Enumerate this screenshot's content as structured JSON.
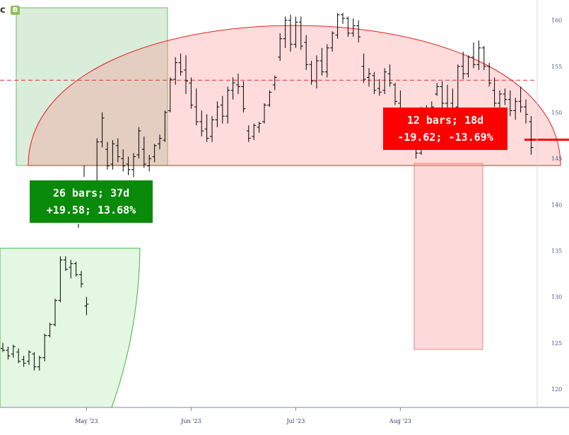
{
  "toolbar": {
    "badge_letter": "B",
    "glyph": "c"
  },
  "callouts": {
    "up": {
      "line1": "26 bars; 37d",
      "line2": "+19.58; 13.68%",
      "color": "#0a8a0a"
    },
    "down": {
      "line1": "12 bars; 18d",
      "line2": "-19.62; -13.69%",
      "color": "#ff0000"
    }
  },
  "chart_data": {
    "type": "ohlc",
    "y_ticks": [
      120,
      125,
      130,
      135,
      140,
      145,
      150,
      155,
      160
    ],
    "ylim": [
      118.0,
      162.2
    ],
    "x_ticks": [
      {
        "label": "May '23",
        "idx": 16
      },
      {
        "label": "Jun '23",
        "idx": 36
      },
      {
        "label": "Jul '23",
        "idx": 56
      },
      {
        "label": "Aug '23",
        "idx": 76
      }
    ],
    "bars": [
      [
        124.4,
        125.0,
        124.0,
        124.2
      ],
      [
        124.2,
        124.6,
        123.2,
        123.6
      ],
      [
        123.8,
        124.8,
        123.4,
        124.6
      ],
      [
        124.0,
        124.4,
        122.8,
        123.0
      ],
      [
        123.2,
        123.6,
        122.4,
        122.8
      ],
      [
        123.0,
        124.2,
        122.6,
        124.0
      ],
      [
        123.8,
        124.0,
        122.0,
        122.4
      ],
      [
        122.4,
        123.6,
        122.0,
        123.4
      ],
      [
        123.4,
        126.0,
        123.0,
        125.8
      ],
      [
        125.8,
        127.2,
        125.6,
        127.0
      ],
      [
        127.0,
        129.8,
        126.8,
        129.6
      ],
      [
        129.6,
        134.4,
        129.4,
        134.0
      ],
      [
        134.0,
        134.4,
        132.8,
        133.0
      ],
      [
        133.2,
        134.0,
        132.0,
        133.6
      ],
      [
        133.6,
        133.8,
        132.2,
        132.4
      ],
      [
        132.4,
        132.8,
        131.0,
        131.4
      ],
      [
        129.0,
        130.0,
        128.0,
        129.2
      ],
      [
        141.0,
        142.0,
        139.2,
        140.4
      ],
      [
        142.2,
        147.2,
        141.8,
        146.8
      ],
      [
        146.8,
        150.0,
        146.2,
        149.4
      ],
      [
        146.0,
        146.8,
        143.8,
        144.2
      ],
      [
        144.4,
        147.0,
        143.8,
        146.6
      ],
      [
        146.4,
        147.2,
        144.6,
        145.2
      ],
      [
        145.0,
        146.0,
        143.6,
        144.2
      ],
      [
        144.4,
        145.2,
        143.2,
        143.8
      ],
      [
        143.8,
        145.6,
        143.0,
        145.2
      ],
      [
        145.4,
        148.4,
        145.0,
        148.0
      ],
      [
        146.0,
        147.4,
        144.0,
        144.4
      ],
      [
        144.2,
        145.4,
        143.6,
        145.0
      ],
      [
        145.2,
        146.6,
        144.6,
        146.4
      ],
      [
        146.6,
        147.6,
        146.0,
        147.2
      ],
      [
        147.0,
        150.2,
        146.8,
        150.0
      ],
      [
        150.2,
        153.8,
        150.0,
        153.6
      ],
      [
        153.6,
        156.0,
        153.0,
        155.4
      ],
      [
        155.4,
        156.4,
        154.0,
        154.4
      ],
      [
        154.6,
        156.2,
        152.0,
        153.4
      ],
      [
        153.2,
        153.8,
        150.4,
        150.8
      ],
      [
        150.6,
        152.6,
        148.6,
        149.0
      ],
      [
        149.0,
        150.2,
        147.4,
        148.0
      ],
      [
        148.2,
        149.8,
        146.8,
        147.2
      ],
      [
        147.4,
        149.6,
        146.8,
        149.2
      ],
      [
        149.2,
        151.2,
        148.4,
        150.6
      ],
      [
        150.8,
        151.8,
        148.8,
        149.6
      ],
      [
        149.6,
        152.8,
        148.8,
        152.4
      ],
      [
        152.4,
        153.8,
        151.4,
        153.2
      ],
      [
        153.0,
        154.2,
        152.0,
        152.8
      ],
      [
        152.8,
        153.4,
        150.0,
        150.4
      ],
      [
        148.0,
        148.6,
        146.8,
        147.2
      ],
      [
        147.4,
        148.8,
        147.0,
        148.6
      ],
      [
        148.4,
        149.0,
        147.8,
        148.8
      ],
      [
        149.0,
        151.0,
        148.8,
        150.8
      ],
      [
        150.8,
        152.4,
        150.6,
        152.2
      ],
      [
        153.0,
        154.0,
        152.4,
        153.8
      ],
      [
        156.0,
        158.6,
        155.6,
        158.0
      ],
      [
        158.0,
        160.4,
        157.0,
        160.0
      ],
      [
        160.0,
        160.6,
        156.6,
        157.4
      ],
      [
        157.4,
        160.4,
        157.0,
        159.8
      ],
      [
        159.8,
        160.4,
        156.8,
        157.2
      ],
      [
        157.6,
        158.4,
        154.6,
        155.2
      ],
      [
        155.2,
        155.6,
        153.0,
        153.4
      ],
      [
        153.4,
        156.2,
        152.6,
        155.6
      ],
      [
        155.6,
        157.0,
        154.0,
        154.4
      ],
      [
        154.4,
        157.4,
        153.8,
        157.0
      ],
      [
        157.0,
        158.8,
        156.6,
        158.6
      ],
      [
        158.4,
        160.8,
        158.0,
        160.6
      ],
      [
        160.6,
        160.8,
        159.6,
        160.2
      ],
      [
        160.2,
        160.4,
        158.2,
        158.6
      ],
      [
        158.6,
        160.2,
        158.2,
        159.4
      ],
      [
        159.4,
        160.0,
        157.6,
        158.2
      ],
      [
        155.0,
        156.4,
        153.2,
        153.6
      ],
      [
        153.8,
        154.8,
        152.8,
        154.2
      ],
      [
        154.0,
        154.4,
        152.0,
        152.4
      ],
      [
        152.6,
        153.6,
        151.8,
        152.2
      ],
      [
        152.4,
        154.8,
        152.0,
        154.4
      ],
      [
        154.2,
        155.2,
        152.8,
        153.2
      ],
      [
        153.0,
        153.2,
        150.8,
        151.2
      ],
      [
        151.0,
        152.4,
        149.4,
        149.8
      ],
      [
        150.0,
        150.4,
        148.0,
        148.6
      ],
      [
        148.4,
        149.4,
        147.2,
        147.6
      ],
      [
        147.2,
        147.6,
        145.0,
        145.6
      ],
      [
        145.6,
        150.6,
        145.4,
        150.2
      ],
      [
        150.0,
        150.8,
        148.8,
        149.8
      ],
      [
        149.8,
        151.2,
        148.6,
        150.6
      ],
      [
        152.0,
        153.2,
        151.8,
        152.8
      ],
      [
        152.8,
        153.4,
        150.4,
        151.0
      ],
      [
        151.0,
        153.0,
        149.6,
        150.0
      ],
      [
        151.0,
        152.6,
        149.8,
        150.4
      ],
      [
        150.6,
        155.2,
        150.4,
        155.0
      ],
      [
        155.0,
        156.6,
        153.6,
        154.2
      ],
      [
        154.2,
        156.2,
        153.8,
        156.0
      ],
      [
        156.0,
        157.6,
        154.8,
        155.2
      ],
      [
        155.2,
        157.8,
        154.6,
        157.0
      ],
      [
        157.0,
        157.2,
        154.6,
        155.0
      ],
      [
        155.0,
        155.4,
        152.8,
        153.2
      ],
      [
        152.4,
        153.8,
        150.6,
        151.0
      ],
      [
        151.0,
        152.4,
        149.8,
        152.0
      ],
      [
        152.0,
        152.6,
        150.8,
        151.4
      ],
      [
        151.4,
        152.4,
        149.6,
        150.2
      ],
      [
        150.2,
        151.6,
        149.2,
        151.2
      ],
      [
        151.2,
        152.8,
        150.0,
        150.6
      ],
      [
        150.6,
        151.4,
        148.8,
        149.8
      ],
      [
        149.0,
        149.6,
        145.4,
        146.2
      ]
    ],
    "reference_line": 153.5,
    "last_price": 146.2,
    "annotations": [
      {
        "kind": "rise",
        "bars": "26 bars; 37d",
        "change": "+19.58; 13.68%"
      },
      {
        "kind": "fall",
        "bars": "12 bars; 18d",
        "change": "-19.62; -13.69%"
      }
    ]
  }
}
